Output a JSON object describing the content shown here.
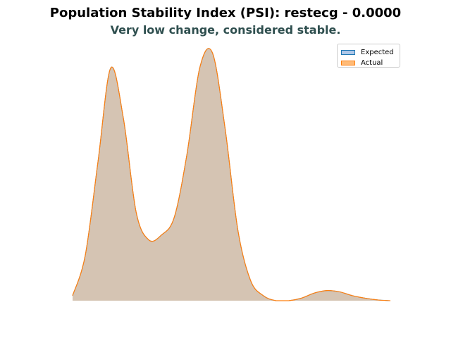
{
  "title": "Population Stability Index (PSI): restecg - 0.0000",
  "subtitle": "Very low change, considered stable.",
  "colors": {
    "expected_line": "#1f77b4",
    "expected_fill": "#aec7e8",
    "actual_line": "#ff7f0e",
    "actual_fill": "#ffbb78",
    "overlap_fill": "#d5c4b3",
    "subtitle": "#2f4f4f"
  },
  "chart_data": {
    "type": "area",
    "title": "Population Stability Index (PSI): restecg - 0.0000",
    "subtitle": "Very low change, considered stable.",
    "xlabel": "",
    "ylabel": "",
    "axes_visible": false,
    "grid": false,
    "legend_position": "top-right",
    "x": [
      0.0,
      0.04,
      0.08,
      0.12,
      0.16,
      0.2,
      0.24,
      0.28,
      0.32,
      0.36,
      0.4,
      0.44,
      0.48,
      0.52,
      0.56,
      0.6,
      0.64,
      0.68,
      0.72,
      0.76,
      0.8,
      0.84,
      0.88,
      0.92,
      0.96,
      1.0
    ],
    "series": [
      {
        "name": "Expected",
        "values": [
          0.02,
          0.18,
          0.55,
          0.92,
          0.72,
          0.35,
          0.24,
          0.26,
          0.33,
          0.58,
          0.92,
          0.98,
          0.68,
          0.28,
          0.08,
          0.02,
          0.0,
          0.0,
          0.01,
          0.03,
          0.04,
          0.035,
          0.02,
          0.01,
          0.003,
          0.0
        ]
      },
      {
        "name": "Actual",
        "values": [
          0.02,
          0.18,
          0.55,
          0.92,
          0.72,
          0.35,
          0.24,
          0.26,
          0.33,
          0.58,
          0.92,
          0.98,
          0.68,
          0.28,
          0.08,
          0.02,
          0.0,
          0.0,
          0.01,
          0.03,
          0.04,
          0.035,
          0.02,
          0.01,
          0.003,
          0.0
        ]
      }
    ],
    "legend": [
      "Expected",
      "Actual"
    ]
  }
}
